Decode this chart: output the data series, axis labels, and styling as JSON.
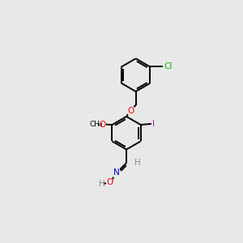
{
  "bg_color": "#e8e8e8",
  "bond_color": "#000000",
  "atom_colors": {
    "O": "#ff0000",
    "N": "#0000cd",
    "Cl": "#00bb00",
    "I": "#cc00cc",
    "H": "#888888",
    "C": "#000000"
  },
  "figsize": [
    3.0,
    3.0
  ],
  "dpi": 100
}
